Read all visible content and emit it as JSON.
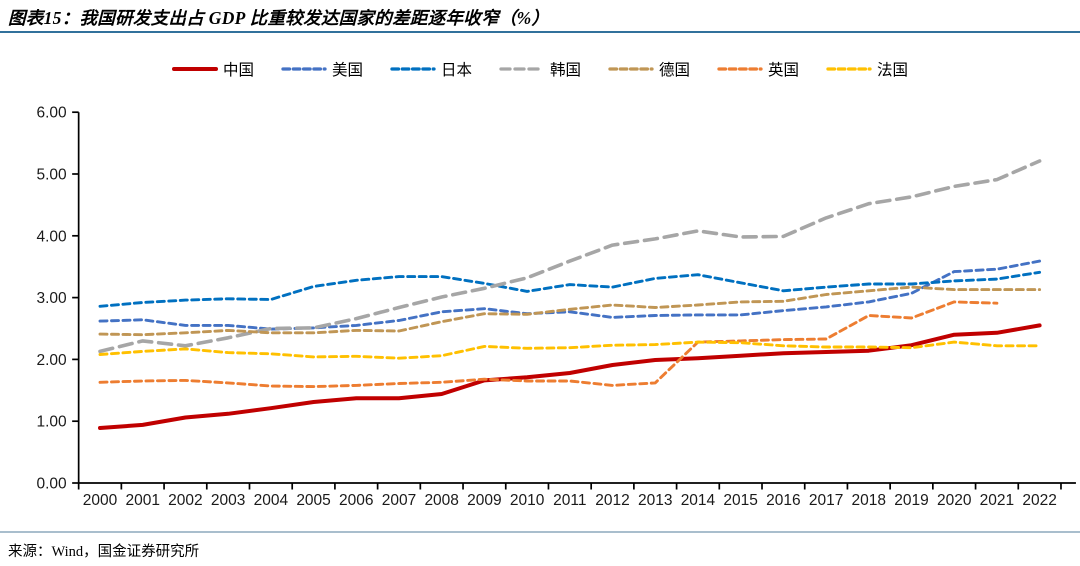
{
  "header": {
    "rule_color": "#31719C"
  },
  "footer": {
    "source": "来源：Wind，国金证券研究所",
    "rule_color": "#A9BECD"
  },
  "chart_data": {
    "type": "line",
    "title": "图表15：我国研发支出占 GDP 比重较发达国家的差距逐年收窄（%）",
    "xlabel": "",
    "ylabel": "",
    "x": [
      "2000",
      "2001",
      "2002",
      "2003",
      "2004",
      "2005",
      "2006",
      "2007",
      "2008",
      "2009",
      "2010",
      "2011",
      "2012",
      "2013",
      "2014",
      "2015",
      "2016",
      "2017",
      "2018",
      "2019",
      "2020",
      "2021",
      "2022"
    ],
    "ylim": [
      0,
      6
    ],
    "ytick_labels": [
      "0.00",
      "1.00",
      "2.00",
      "3.00",
      "4.00",
      "5.00",
      "6.00"
    ],
    "grid": false,
    "legend_position": "top",
    "axis_color": "#000000",
    "series": [
      {
        "name": "中国",
        "key": "china",
        "color": "#C00000",
        "style": "solid",
        "width": 4,
        "values": [
          0.89,
          0.94,
          1.06,
          1.12,
          1.21,
          1.31,
          1.37,
          1.37,
          1.44,
          1.66,
          1.71,
          1.78,
          1.91,
          1.99,
          2.02,
          2.06,
          2.1,
          2.12,
          2.14,
          2.23,
          2.4,
          2.43,
          2.55
        ]
      },
      {
        "name": "美国",
        "key": "us",
        "color": "#4472C4",
        "style": "dashed",
        "width": 2.9,
        "values": [
          2.62,
          2.64,
          2.55,
          2.55,
          2.49,
          2.51,
          2.55,
          2.63,
          2.77,
          2.82,
          2.74,
          2.77,
          2.68,
          2.71,
          2.72,
          2.72,
          2.79,
          2.85,
          2.93,
          3.07,
          3.42,
          3.46,
          3.59
        ]
      },
      {
        "name": "日本",
        "key": "japan",
        "color": "#0070C0",
        "style": "dashed",
        "width": 2.9,
        "values": [
          2.86,
          2.92,
          2.96,
          2.98,
          2.97,
          3.18,
          3.28,
          3.34,
          3.34,
          3.23,
          3.1,
          3.21,
          3.17,
          3.31,
          3.37,
          3.24,
          3.11,
          3.17,
          3.22,
          3.22,
          3.27,
          3.3,
          3.41
        ]
      },
      {
        "name": "韩国",
        "key": "korea",
        "color": "#A6A6A6",
        "style": "long-dash",
        "width": 3.6,
        "values": [
          2.13,
          2.3,
          2.22,
          2.35,
          2.5,
          2.51,
          2.66,
          2.84,
          3.01,
          3.15,
          3.32,
          3.59,
          3.85,
          3.95,
          4.08,
          3.98,
          3.99,
          4.29,
          4.52,
          4.63,
          4.8,
          4.91,
          5.21
        ]
      },
      {
        "name": "德国",
        "key": "germany",
        "color": "#C09655",
        "style": "dashed",
        "width": 2.9,
        "values": [
          2.41,
          2.4,
          2.43,
          2.47,
          2.43,
          2.43,
          2.47,
          2.46,
          2.61,
          2.74,
          2.73,
          2.81,
          2.88,
          2.84,
          2.88,
          2.93,
          2.94,
          3.05,
          3.11,
          3.17,
          3.13,
          3.13,
          3.13
        ]
      },
      {
        "name": "英国",
        "key": "uk",
        "color": "#ED7D31",
        "style": "dashed",
        "width": 2.9,
        "values": [
          1.63,
          1.65,
          1.66,
          1.62,
          1.57,
          1.56,
          1.58,
          1.61,
          1.63,
          1.68,
          1.65,
          1.65,
          1.58,
          1.62,
          2.28,
          2.3,
          2.32,
          2.33,
          2.71,
          2.67,
          2.93,
          2.91,
          null
        ]
      },
      {
        "name": "法国",
        "key": "france",
        "color": "#FFC000",
        "style": "dashed",
        "width": 2.9,
        "values": [
          2.08,
          2.13,
          2.17,
          2.11,
          2.09,
          2.04,
          2.05,
          2.02,
          2.06,
          2.21,
          2.18,
          2.19,
          2.23,
          2.24,
          2.28,
          2.27,
          2.22,
          2.2,
          2.2,
          2.19,
          2.28,
          2.22,
          2.22
        ]
      }
    ]
  }
}
